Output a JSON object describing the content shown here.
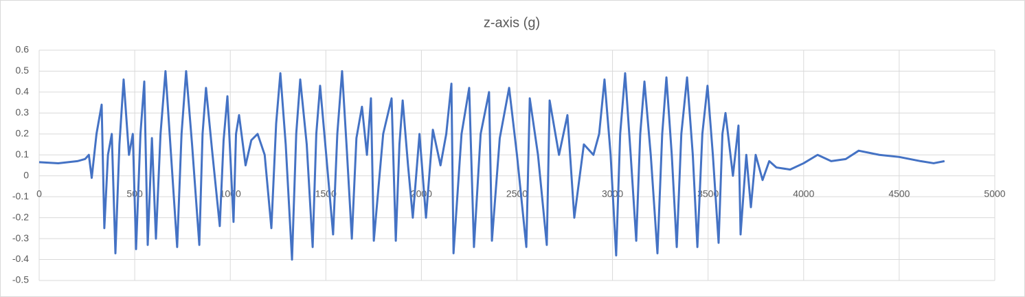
{
  "chart_data": {
    "type": "line",
    "title": "z-axis (g)",
    "color": "#4472c4",
    "grid": true,
    "xlim": [
      0,
      5000
    ],
    "xticks": [
      0,
      500,
      1000,
      1500,
      2000,
      2500,
      3000,
      3500,
      4000,
      4500,
      5000
    ],
    "ylim": [
      -0.5,
      0.6
    ],
    "yticks": [
      -0.5,
      -0.4,
      -0.3,
      -0.2,
      -0.1,
      0,
      0.1,
      0.2,
      0.3,
      0.4,
      0.5,
      0.6
    ],
    "x": [
      0,
      100,
      200,
      240,
      260,
      275,
      300,
      327,
      341,
      360,
      380,
      399,
      420,
      442,
      470,
      490,
      507,
      530,
      550,
      568,
      590,
      611,
      635,
      661,
      690,
      722,
      745,
      769,
      800,
      838,
      855,
      873,
      905,
      945,
      965,
      985,
      1000,
      1017,
      1030,
      1046,
      1080,
      1110,
      1143,
      1180,
      1215,
      1240,
      1262,
      1290,
      1323,
      1345,
      1366,
      1400,
      1431,
      1450,
      1470,
      1500,
      1538,
      1560,
      1585,
      1610,
      1636,
      1660,
      1689,
      1715,
      1736,
      1751,
      1800,
      1844,
      1866,
      1885,
      1902,
      1930,
      1955,
      1990,
      2024,
      2060,
      2100,
      2130,
      2157,
      2168,
      2210,
      2250,
      2275,
      2310,
      2354,
      2369,
      2410,
      2459,
      2500,
      2549,
      2567,
      2610,
      2656,
      2671,
      2720,
      2764,
      2800,
      2850,
      2900,
      2930,
      2958,
      2990,
      3019,
      3040,
      3066,
      3095,
      3124,
      3145,
      3167,
      3200,
      3235,
      3260,
      3282,
      3310,
      3336,
      3360,
      3390,
      3420,
      3444,
      3470,
      3497,
      3525,
      3555,
      3575,
      3591,
      3630,
      3659,
      3670,
      3700,
      3724,
      3749,
      3785,
      3820,
      3857,
      3929,
      4000,
      4073,
      4144,
      4220,
      4288,
      4396,
      4500,
      4612,
      4680,
      4737
    ],
    "values": [
      0.065,
      0.06,
      0.07,
      0.08,
      0.1,
      -0.01,
      0.2,
      0.34,
      -0.25,
      0.1,
      0.2,
      -0.37,
      0.15,
      0.46,
      0.1,
      0.2,
      -0.35,
      0.2,
      0.45,
      -0.33,
      0.18,
      -0.3,
      0.2,
      0.5,
      0.1,
      -0.34,
      0.2,
      0.5,
      0.15,
      -0.33,
      0.2,
      0.42,
      0.12,
      -0.24,
      0.17,
      0.38,
      0.1,
      -0.22,
      0.2,
      0.29,
      0.05,
      0.17,
      0.2,
      0.1,
      -0.25,
      0.25,
      0.49,
      0.15,
      -0.4,
      0.2,
      0.46,
      0.15,
      -0.34,
      0.2,
      0.43,
      0.12,
      -0.28,
      0.2,
      0.5,
      0.12,
      -0.3,
      0.18,
      0.33,
      0.1,
      0.37,
      -0.31,
      0.2,
      0.37,
      -0.31,
      0.15,
      0.36,
      0.05,
      -0.2,
      0.2,
      -0.2,
      0.22,
      0.05,
      0.2,
      0.44,
      -0.37,
      0.2,
      0.42,
      -0.34,
      0.2,
      0.4,
      -0.31,
      0.18,
      0.42,
      0.1,
      -0.34,
      0.37,
      0.1,
      -0.33,
      0.36,
      0.1,
      0.29,
      -0.2,
      0.15,
      0.1,
      0.2,
      0.46,
      0.1,
      -0.38,
      0.2,
      0.49,
      0.1,
      -0.31,
      0.2,
      0.45,
      0.1,
      -0.37,
      0.2,
      0.47,
      0.1,
      -0.34,
      0.2,
      0.47,
      0.1,
      -0.34,
      0.2,
      0.43,
      0.1,
      -0.32,
      0.2,
      0.3,
      0.0,
      0.24,
      -0.28,
      0.1,
      -0.15,
      0.1,
      -0.02,
      0.07,
      0.04,
      0.03,
      0.06,
      0.1,
      0.07,
      0.08,
      0.12,
      0.1,
      0.09,
      0.07,
      0.06,
      0.07
    ]
  }
}
